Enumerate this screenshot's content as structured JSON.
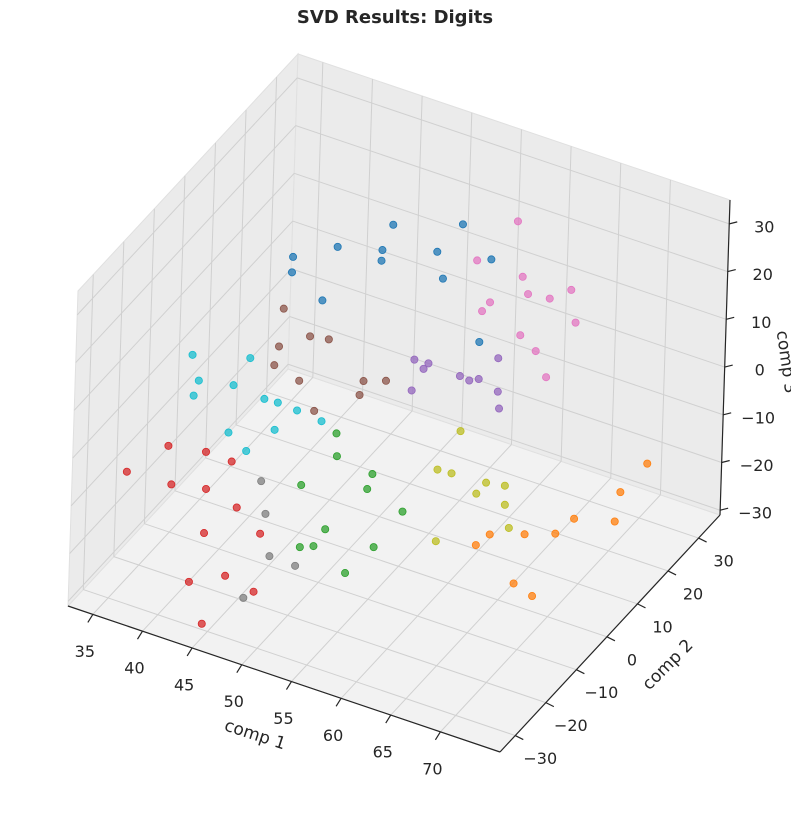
{
  "chart_data": {
    "type": "scatter3d",
    "title": "SVD Results: Digits",
    "xlabel": "comp 1",
    "ylabel": "comp 2",
    "zlabel": "comp 3",
    "xlim": [
      32.5,
      76
    ],
    "ylim": [
      -35,
      37
    ],
    "zlim": [
      -31,
      35
    ],
    "xticks": [
      35,
      40,
      45,
      50,
      55,
      60,
      65,
      70
    ],
    "yticks": [
      {
        "value": -30,
        "label": "−30"
      },
      {
        "value": -20,
        "label": "−20"
      },
      {
        "value": -10,
        "label": "−10"
      },
      0,
      10,
      20,
      30
    ],
    "zticks": [
      {
        "value": -30,
        "label": "−30"
      },
      {
        "value": -20,
        "label": "−20"
      },
      {
        "value": -10,
        "label": "−10"
      },
      0,
      10,
      20,
      30
    ],
    "grid": true,
    "series": [
      {
        "color": "#1f77b4",
        "x": [
          42,
          45,
          48,
          50,
          52,
          55,
          58,
          46,
          40,
          53,
          60,
          49
        ],
        "y": [
          5,
          10,
          15,
          8,
          20,
          12,
          18,
          2,
          12,
          25,
          8,
          15
        ],
        "z": [
          18,
          22,
          20,
          24,
          19,
          21,
          23,
          17,
          15,
          22,
          14,
          26
        ]
      },
      {
        "color": "#e377c2",
        "x": [
          58,
          60,
          62,
          64,
          56,
          61,
          66,
          59,
          63,
          57,
          65,
          60
        ],
        "y": [
          18,
          22,
          15,
          25,
          20,
          28,
          20,
          12,
          17,
          30,
          14,
          24
        ],
        "z": [
          14,
          18,
          12,
          16,
          20,
          10,
          14,
          17,
          8,
          22,
          6,
          13
        ]
      },
      {
        "color": "#9467bd",
        "x": [
          55,
          57,
          60,
          58,
          53,
          62,
          56,
          59,
          61,
          54
        ],
        "y": [
          8,
          12,
          5,
          15,
          10,
          8,
          3,
          18,
          12,
          6
        ],
        "z": [
          6,
          2,
          8,
          0,
          4,
          5,
          9,
          3,
          -2,
          1
        ]
      },
      {
        "color": "#8c564b",
        "x": [
          42,
          44,
          47,
          45,
          50,
          43,
          48,
          52,
          46,
          41
        ],
        "y": [
          0,
          5,
          -3,
          8,
          2,
          -2,
          10,
          4,
          -5,
          6
        ],
        "z": [
          2,
          6,
          -2,
          4,
          0,
          8,
          -4,
          3,
          5,
          9
        ]
      },
      {
        "color": "#17becf",
        "x": [
          36,
          38,
          40,
          42,
          39,
          44,
          37,
          41,
          45,
          43,
          35,
          46
        ],
        "y": [
          -5,
          0,
          -8,
          -3,
          2,
          -6,
          -10,
          5,
          -2,
          -12,
          -4,
          3
        ],
        "z": [
          -2,
          -5,
          -8,
          -3,
          0,
          -6,
          -1,
          -10,
          -4,
          -7,
          2,
          -9
        ]
      },
      {
        "color": "#d62728",
        "x": [
          35,
          38,
          40,
          42,
          44,
          46,
          39,
          43,
          47,
          41,
          48,
          45,
          37
        ],
        "y": [
          -25,
          -20,
          -15,
          -22,
          -18,
          -28,
          -12,
          -30,
          -20,
          -10,
          -25,
          -32,
          -18
        ],
        "z": [
          -8,
          -12,
          -15,
          -18,
          -14,
          -20,
          -10,
          -22,
          -16,
          -12,
          -24,
          -28,
          -6
        ]
      },
      {
        "color": "#2ca02c",
        "x": [
          48,
          50,
          52,
          54,
          56,
          51,
          49,
          55,
          53,
          57,
          50
        ],
        "y": [
          -10,
          -5,
          -15,
          -8,
          -12,
          -20,
          -2,
          -18,
          -3,
          -6,
          -12
        ],
        "z": [
          -12,
          -8,
          -15,
          -10,
          -18,
          -16,
          -6,
          -20,
          -11,
          -14,
          -22
        ]
      },
      {
        "color": "#bcbd22",
        "x": [
          60,
          62,
          64,
          58,
          63,
          66,
          61,
          59,
          65
        ],
        "y": [
          0,
          5,
          -5,
          2,
          8,
          -2,
          -8,
          6,
          3
        ],
        "z": [
          -8,
          -12,
          -6,
          -10,
          -14,
          -9,
          -16,
          -4,
          -18
        ]
      },
      {
        "color": "#ff7f0e",
        "x": [
          64,
          66,
          68,
          70,
          67,
          72,
          69,
          65,
          71,
          73
        ],
        "y": [
          0,
          5,
          -5,
          8,
          12,
          15,
          -2,
          -8,
          20,
          22
        ],
        "z": [
          -18,
          -20,
          -22,
          -16,
          -24,
          -20,
          -26,
          -14,
          -18,
          -12
        ]
      },
      {
        "color": "#7f7f7f",
        "x": [
          46,
          48,
          44,
          50,
          47
        ],
        "y": [
          -15,
          -20,
          -10,
          -18,
          -25
        ],
        "z": [
          -16,
          -20,
          -14,
          -22,
          -26
        ]
      }
    ]
  }
}
